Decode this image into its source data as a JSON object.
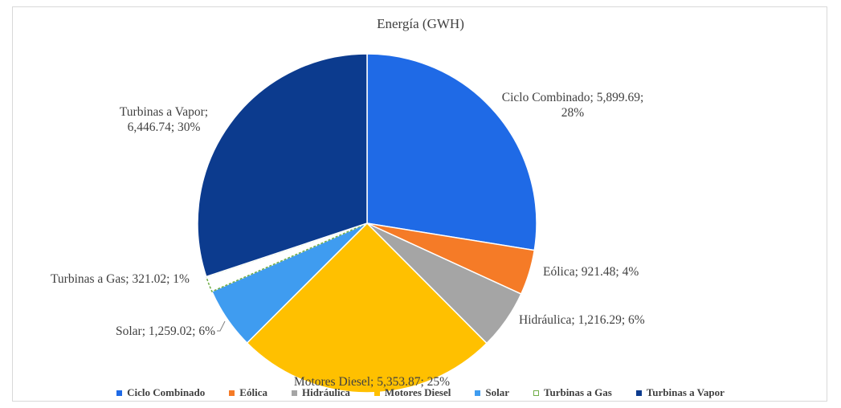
{
  "chart_data": {
    "type": "pie",
    "title": "Energía (GWH)",
    "categories": [
      "Ciclo Combinado",
      "Eólica",
      "Hidráulica",
      "Motores Diesel",
      "Solar",
      "Turbinas a Gas",
      "Turbinas a Vapor"
    ],
    "values": [
      5899.69,
      921.48,
      1216.29,
      5353.87,
      1259.02,
      321.02,
      6446.74
    ],
    "value_labels": [
      "Ciclo Combinado; 5,899.69; 28%",
      "Eólica; 921.48; 4%",
      "Hidráulica; 1,216.29; 6%",
      "Motores Diesel; 5,353.87; 25%",
      "Solar; 1,259.02; 6%",
      "Turbinas a Gas; 321.02; 1%",
      "Turbinas a Vapor; 6,446.74; 30%"
    ],
    "colors": [
      "#1f6ae6",
      "#f57b27",
      "#a5a5a5",
      "#ffc000",
      "#3f9cf0",
      "#ffffff",
      "#0c3b8e"
    ],
    "edgecolors": [
      "#ffffff",
      "#ffffff",
      "#ffffff",
      "#ffffff",
      "#ffffff",
      "#70ad47",
      "#ffffff"
    ],
    "legend": "bottom"
  }
}
